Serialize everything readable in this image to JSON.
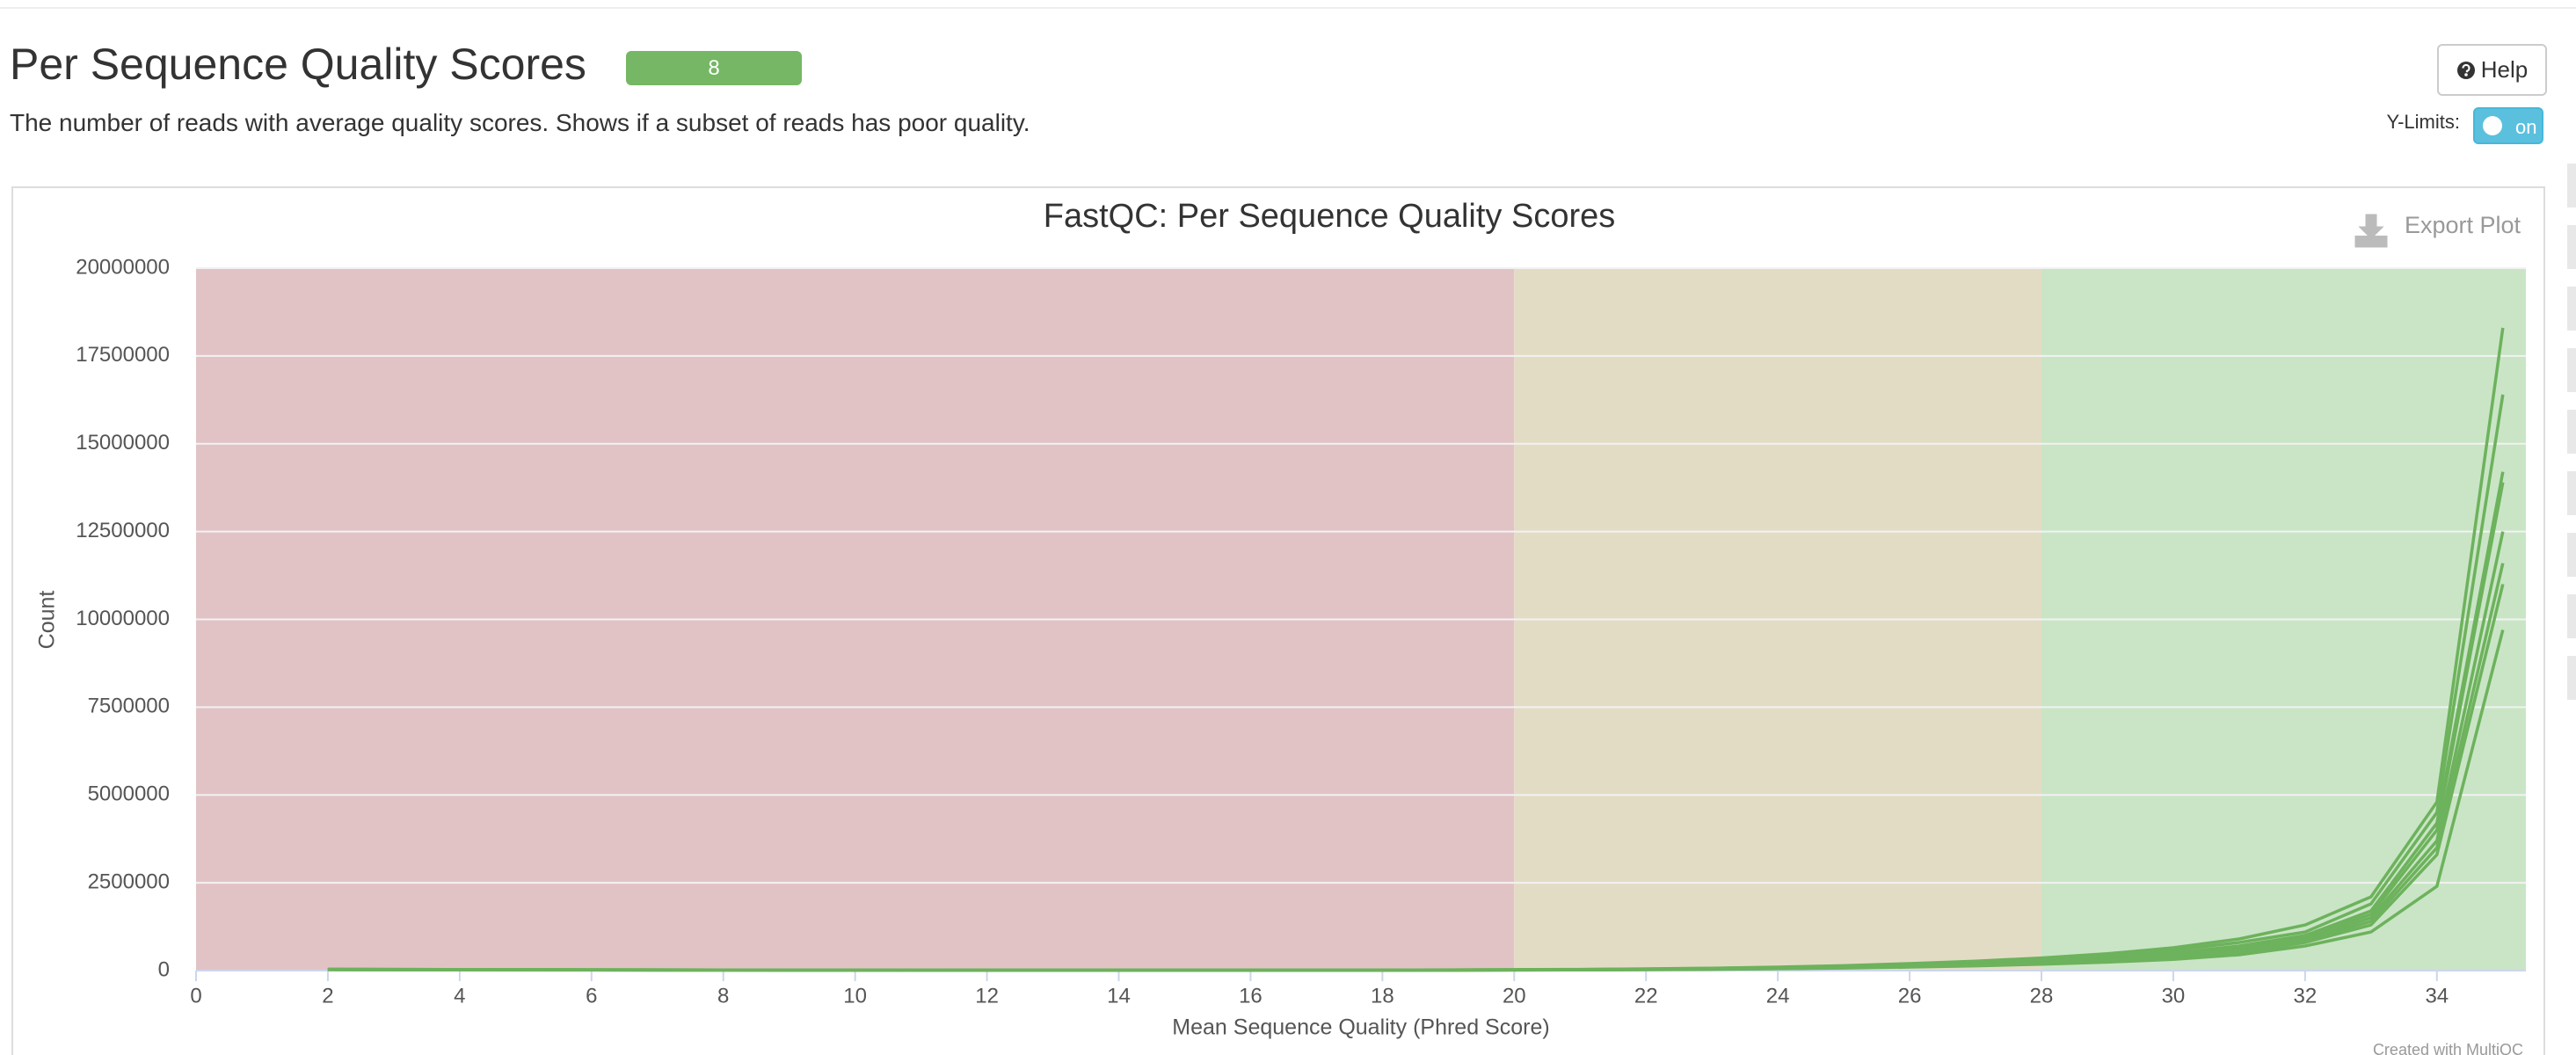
{
  "header": {
    "title": "Per Sequence Quality Scores",
    "badge": "8",
    "description": "The number of reads with average quality scores. Shows if a subset of reads has poor quality.",
    "help": "Help",
    "ylimits_label": "Y-Limits:",
    "toggle": "on"
  },
  "export": "Export Plot",
  "credit": "Created with MultiQC",
  "chart_data": {
    "type": "line",
    "title": "FastQC: Per Sequence Quality Scores",
    "x_label": "Mean Sequence Quality (Phred Score)",
    "y_label": "Count",
    "xlim": [
      0,
      35.35
    ],
    "ylim": [
      0,
      20000000
    ],
    "xticks": [
      0,
      2,
      4,
      6,
      8,
      10,
      12,
      14,
      16,
      18,
      20,
      22,
      24,
      26,
      28,
      30,
      32,
      34
    ],
    "yticks": [
      0,
      2500000,
      5000000,
      7500000,
      10000000,
      12500000,
      15000000,
      17500000,
      20000000
    ],
    "grid": true,
    "bands": [
      {
        "from": 0,
        "to": 20,
        "color": "#e1c3c6"
      },
      {
        "from": 20,
        "to": 28,
        "color": "#e3dcc5"
      },
      {
        "from": 28,
        "to": 35.35,
        "color": "#c9e5c6"
      }
    ],
    "x": [
      2,
      4,
      6,
      8,
      10,
      12,
      14,
      16,
      18,
      20,
      21,
      22,
      23,
      24,
      25,
      26,
      27,
      28,
      29,
      30,
      31,
      32,
      33,
      34,
      35
    ],
    "series": [
      {
        "color": "#6db25c",
        "values": [
          40000,
          30000,
          25000,
          20000,
          18000,
          16000,
          15000,
          15000,
          16000,
          27000,
          36000,
          50000,
          70000,
          100000,
          140000,
          200000,
          270000,
          360000,
          480000,
          650000,
          900000,
          1300000,
          2100000,
          4800000,
          18300000
        ]
      },
      {
        "color": "#6db25c",
        "values": [
          38000,
          29000,
          24000,
          19000,
          17000,
          15000,
          14000,
          14000,
          15000,
          25000,
          33000,
          46000,
          64000,
          90000,
          130000,
          180000,
          240000,
          320000,
          430000,
          580000,
          800000,
          1100000,
          1900000,
          4500000,
          16400000
        ]
      },
      {
        "color": "#6db25c",
        "values": [
          35000,
          27000,
          22000,
          18000,
          16000,
          14000,
          13000,
          13000,
          14000,
          22000,
          29000,
          41000,
          57000,
          80000,
          115000,
          160000,
          210000,
          280000,
          370000,
          500000,
          700000,
          1000000,
          1700000,
          4200000,
          14200000
        ]
      },
      {
        "color": "#6db25c",
        "values": [
          33000,
          26000,
          21000,
          17000,
          15000,
          13000,
          12000,
          12000,
          13000,
          20000,
          27000,
          38000,
          53000,
          75000,
          105000,
          150000,
          200000,
          260000,
          350000,
          470000,
          650000,
          950000,
          1600000,
          4000000,
          13900000
        ]
      },
      {
        "color": "#6db25c",
        "values": [
          31000,
          24000,
          20000,
          16000,
          14000,
          12000,
          11000,
          11000,
          12000,
          18000,
          25000,
          34000,
          48000,
          68000,
          95000,
          135000,
          180000,
          240000,
          320000,
          430000,
          600000,
          900000,
          1500000,
          3700000,
          12500000
        ]
      },
      {
        "color": "#6db25c",
        "values": [
          30000,
          23000,
          19000,
          15000,
          13000,
          12000,
          11000,
          11000,
          11000,
          17000,
          23000,
          32000,
          45000,
          64000,
          90000,
          125000,
          170000,
          220000,
          300000,
          400000,
          550000,
          850000,
          1400000,
          3500000,
          11600000
        ]
      },
      {
        "color": "#6db25c",
        "values": [
          26000,
          20000,
          16000,
          13000,
          11000,
          10000,
          9000,
          9000,
          9000,
          14000,
          19000,
          26000,
          37000,
          52000,
          72000,
          100000,
          135000,
          180000,
          240000,
          320000,
          450000,
          700000,
          1100000,
          2400000,
          9700000
        ]
      },
      {
        "color": "#6db25c",
        "values": [
          28000,
          21000,
          17000,
          14000,
          12000,
          11000,
          10000,
          10000,
          10000,
          16000,
          21000,
          29000,
          41000,
          58000,
          80000,
          110000,
          150000,
          200000,
          270000,
          360000,
          500000,
          800000,
          1300000,
          3300000,
          11000000
        ]
      }
    ]
  }
}
